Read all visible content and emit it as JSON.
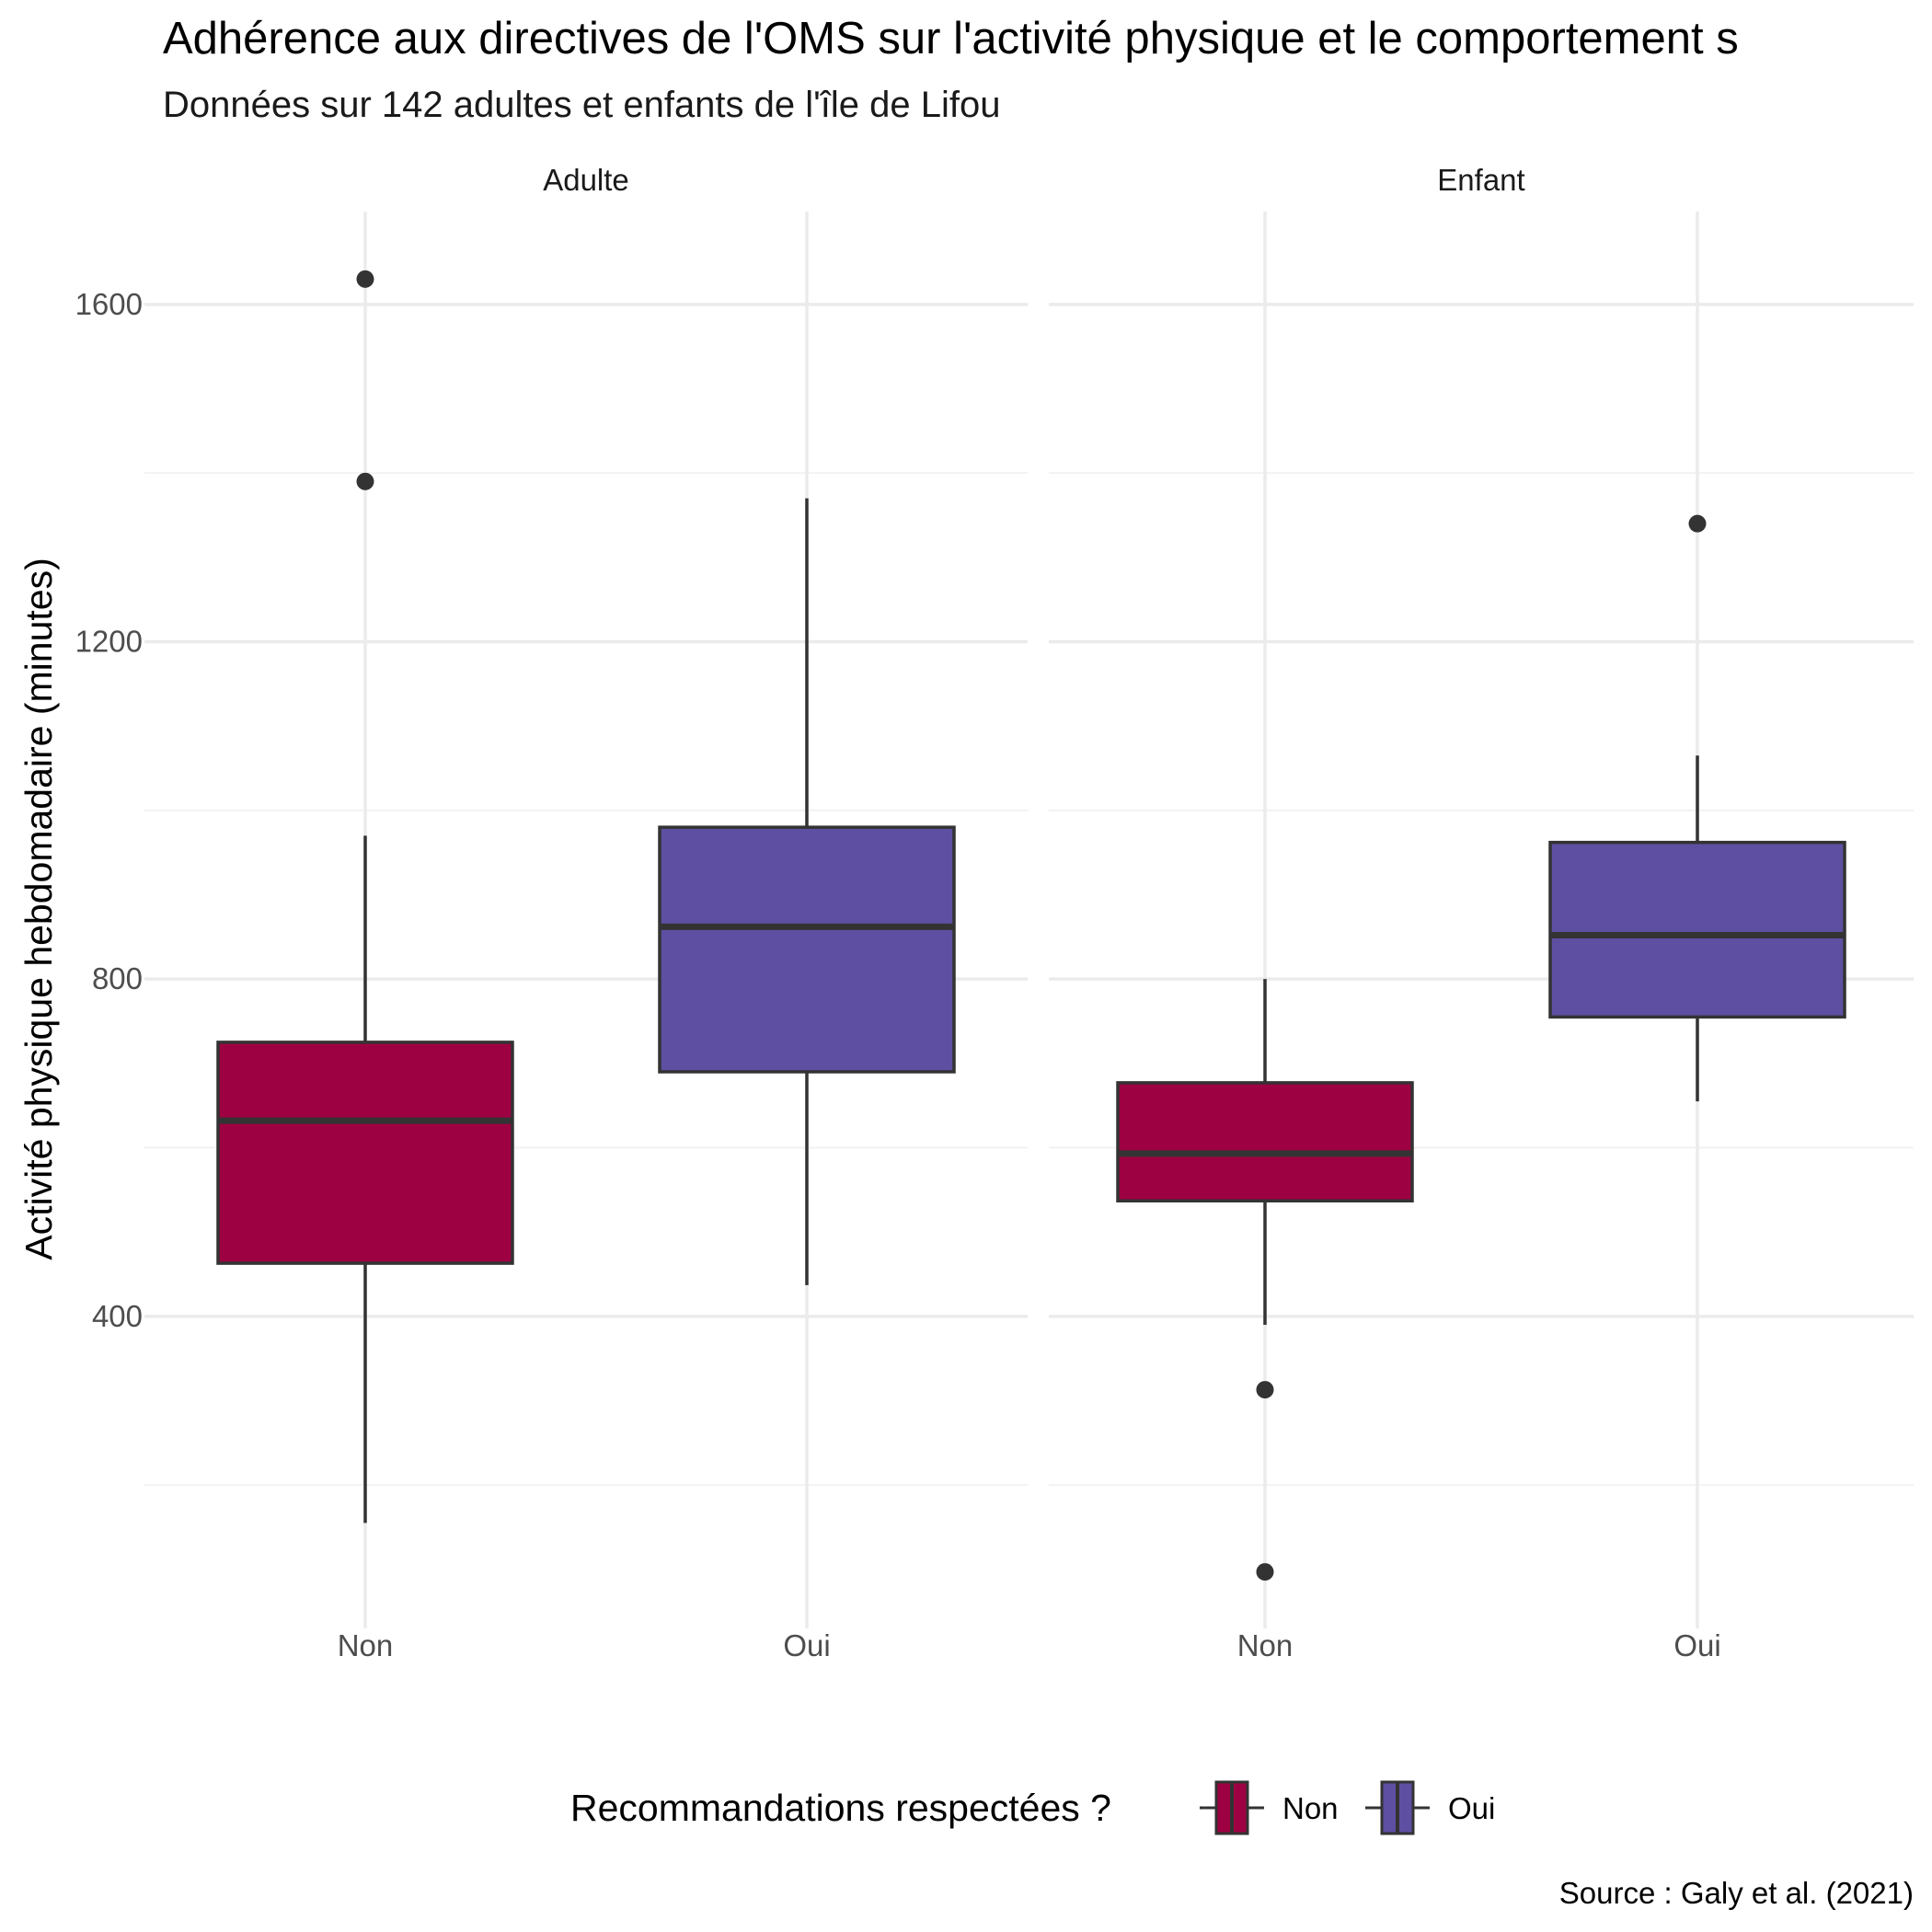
{
  "chart_data": {
    "type": "boxplot",
    "title": "Adhérence aux directives de l'OMS sur l'activité physique et le comportement s",
    "subtitle": "Données sur 142 adultes et enfants de l'île de Lifou",
    "ylabel": "Activité physique hebdomadaire (minutes)",
    "xlabel": "",
    "caption": "Source : Galy et al. (2021)",
    "ylim": [
      30,
      1710
    ],
    "yticks": [
      400,
      800,
      1200,
      1600
    ],
    "minor_yticks": [
      200,
      600,
      1000,
      1400
    ],
    "grid": true,
    "categories": [
      "Non",
      "Oui"
    ],
    "facets": [
      {
        "label": "Adulte",
        "boxes": [
          {
            "category": "Non",
            "q1": 463,
            "median": 632,
            "q3": 725,
            "whisker_low": 155,
            "whisker_high": 970,
            "outliers": [
              1390,
              1630
            ]
          },
          {
            "category": "Oui",
            "q1": 690,
            "median": 862,
            "q3": 980,
            "whisker_low": 437,
            "whisker_high": 1370,
            "outliers": []
          }
        ]
      },
      {
        "label": "Enfant",
        "boxes": [
          {
            "category": "Non",
            "q1": 537,
            "median": 593,
            "q3": 677,
            "whisker_low": 390,
            "whisker_high": 800,
            "outliers": [
              313,
              97
            ]
          },
          {
            "category": "Oui",
            "q1": 755,
            "median": 852,
            "q3": 962,
            "whisker_low": 655,
            "whisker_high": 1065,
            "outliers": [
              1340
            ]
          }
        ]
      }
    ],
    "legend": {
      "title": "Recommandations respectées ?",
      "placement": "bottom",
      "entries": [
        {
          "label": "Non",
          "color": "#9E0142"
        },
        {
          "label": "Oui",
          "color": "#5E4FA2"
        }
      ]
    },
    "colors": {
      "Non": "#9E0142",
      "Oui": "#5E4FA2",
      "outline": "#333333",
      "grid_major": "#ebebeb",
      "grid_minor": "#f2f2f2"
    }
  }
}
